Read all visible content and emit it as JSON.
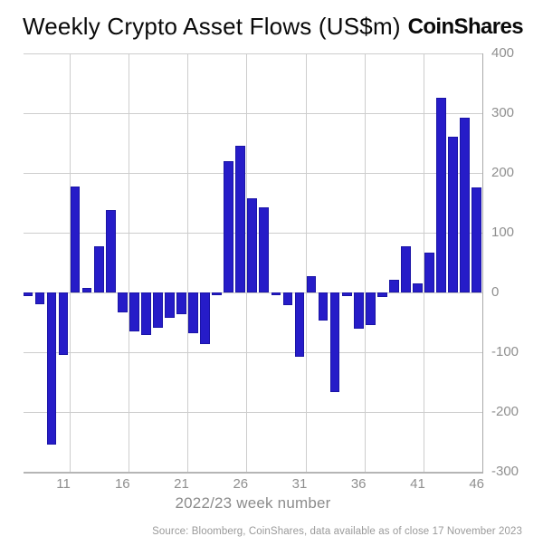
{
  "header": {
    "title": "Weekly Crypto Asset Flows (US$m)",
    "logo": "CoinShares"
  },
  "chart_data": {
    "type": "bar",
    "title": "Weekly Crypto Asset Flows (US$m)",
    "xlabel": "2022/23 week number",
    "ylabel": "",
    "x": [
      8,
      9,
      10,
      11,
      12,
      13,
      14,
      15,
      16,
      17,
      18,
      19,
      20,
      21,
      22,
      23,
      24,
      25,
      26,
      27,
      28,
      29,
      30,
      31,
      32,
      33,
      34,
      35,
      36,
      37,
      38,
      39,
      40,
      41,
      42,
      43,
      44,
      45,
      46
    ],
    "values": [
      -6,
      -19,
      -255,
      -104,
      178,
      7,
      78,
      138,
      -33,
      -65,
      -71,
      -59,
      -43,
      -36,
      -68,
      -86,
      -5,
      220,
      246,
      157,
      143,
      -4,
      -21,
      -107,
      28,
      -47,
      -166,
      -6,
      -61,
      -55,
      -8,
      21,
      78,
      15,
      66,
      326,
      261,
      293,
      176
    ],
    "ylim": [
      -300,
      400
    ],
    "yticks": [
      400,
      300,
      200,
      100,
      0,
      -100,
      -200,
      -300
    ],
    "xticks": [
      11,
      16,
      21,
      26,
      31,
      36,
      41,
      46
    ],
    "grid": true,
    "legend": "none",
    "bar_color": "#261cc8",
    "bar_border_color": "#1a14a6",
    "gridline_color": "#cdcdcd",
    "tick_label_color": "#8f8f8f"
  },
  "footer": {
    "source": "Source: Bloomberg, CoinShares, data available as of close 17 November 2023"
  }
}
